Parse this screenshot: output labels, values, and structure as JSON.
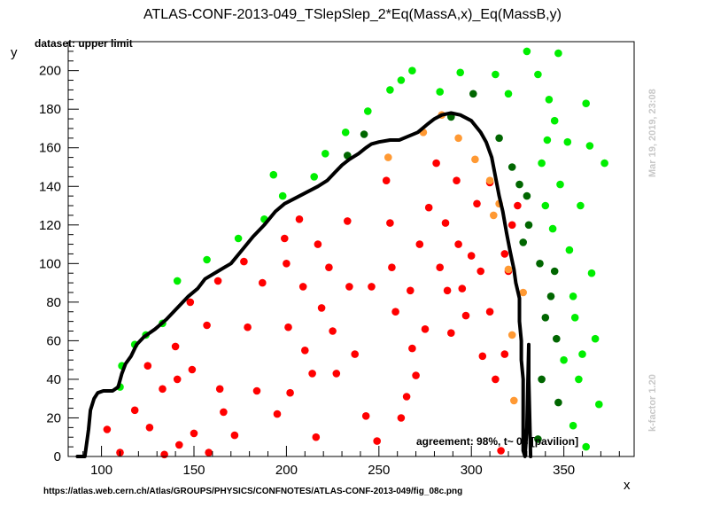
{
  "chart_data": {
    "type": "scatter",
    "title": "ATLAS-CONF-2013-049_TSlepSlep_2*Eq(MassA,x)_Eq(MassB,y)",
    "subtitle": "dataset: upper limit",
    "xlabel": "x",
    "ylabel": "y",
    "xlim": [
      82,
      388
    ],
    "ylim": [
      0,
      215
    ],
    "xticks": [
      100,
      150,
      200,
      250,
      300,
      350
    ],
    "yticks": [
      0,
      20,
      40,
      60,
      80,
      100,
      120,
      140,
      160,
      180,
      200
    ],
    "grid": false,
    "annotation": "agreement: 98%, t~ 0s [pavilion]",
    "watermark_date": "Mar 19, 2019, 23:08",
    "watermark_version": "k-factor 1.20",
    "footer_url": "https://atlas.web.cern.ch/Atlas/GROUPS/PHYSICS/CONFNOTES/ATLAS-CONF-2013-049/fig_08c.png",
    "colors": {
      "red": "#ff0000",
      "orange": "#ff9933",
      "lightgreen": "#00ee00",
      "darkgreen": "#006600",
      "curve": "#000000"
    },
    "series": [
      {
        "name": "red",
        "points": [
          [
            103,
            14
          ],
          [
            110,
            2
          ],
          [
            118,
            24
          ],
          [
            125,
            47
          ],
          [
            126,
            15
          ],
          [
            133,
            35
          ],
          [
            134,
            1
          ],
          [
            140,
            57
          ],
          [
            141,
            40
          ],
          [
            142,
            6
          ],
          [
            148,
            80
          ],
          [
            149,
            45
          ],
          [
            150,
            12
          ],
          [
            157,
            68
          ],
          [
            158,
            2
          ],
          [
            163,
            91
          ],
          [
            164,
            35
          ],
          [
            166,
            23
          ],
          [
            172,
            11
          ],
          [
            177,
            101
          ],
          [
            179,
            67
          ],
          [
            184,
            34
          ],
          [
            187,
            90
          ],
          [
            195,
            22
          ],
          [
            199,
            113
          ],
          [
            200,
            100
          ],
          [
            201,
            67
          ],
          [
            202,
            33
          ],
          [
            207,
            123
          ],
          [
            209,
            88
          ],
          [
            210,
            55
          ],
          [
            214,
            43
          ],
          [
            216,
            10
          ],
          [
            217,
            110
          ],
          [
            219,
            77
          ],
          [
            223,
            98
          ],
          [
            225,
            65
          ],
          [
            227,
            43
          ],
          [
            233,
            122
          ],
          [
            234,
            88
          ],
          [
            237,
            53
          ],
          [
            243,
            21
          ],
          [
            246,
            88
          ],
          [
            249,
            8
          ],
          [
            254,
            143
          ],
          [
            256,
            121
          ],
          [
            257,
            98
          ],
          [
            259,
            75
          ],
          [
            262,
            20
          ],
          [
            265,
            31
          ],
          [
            267,
            86
          ],
          [
            268,
            56
          ],
          [
            270,
            42
          ],
          [
            272,
            110
          ],
          [
            275,
            66
          ],
          [
            277,
            129
          ],
          [
            281,
            152
          ],
          [
            283,
            98
          ],
          [
            286,
            121
          ],
          [
            287,
            86
          ],
          [
            289,
            64
          ],
          [
            292,
            143
          ],
          [
            293,
            110
          ],
          [
            295,
            87
          ],
          [
            297,
            73
          ],
          [
            300,
            104
          ],
          [
            303,
            131
          ],
          [
            305,
            96
          ],
          [
            306,
            52
          ],
          [
            310,
            75
          ],
          [
            313,
            40
          ],
          [
            316,
            3
          ],
          [
            318,
            53
          ],
          [
            320,
            96
          ],
          [
            318,
            105
          ],
          [
            322,
            120
          ],
          [
            325,
            130
          ],
          [
            310,
            142
          ]
        ]
      },
      {
        "name": "orange",
        "points": [
          [
            255,
            155
          ],
          [
            274,
            168
          ],
          [
            284,
            177
          ],
          [
            293,
            165
          ],
          [
            302,
            154
          ],
          [
            310,
            143
          ],
          [
            312,
            125
          ],
          [
            315,
            131
          ],
          [
            320,
            97
          ],
          [
            322,
            63
          ],
          [
            323,
            29
          ],
          [
            328,
            85
          ]
        ]
      },
      {
        "name": "lightgreen",
        "points": [
          [
            110,
            36
          ],
          [
            111,
            47
          ],
          [
            118,
            58
          ],
          [
            124,
            63
          ],
          [
            133,
            69
          ],
          [
            141,
            91
          ],
          [
            157,
            102
          ],
          [
            174,
            113
          ],
          [
            188,
            123
          ],
          [
            193,
            146
          ],
          [
            198,
            135
          ],
          [
            215,
            145
          ],
          [
            221,
            157
          ],
          [
            232,
            168
          ],
          [
            244,
            179
          ],
          [
            256,
            190
          ],
          [
            262,
            195
          ],
          [
            268,
            200
          ],
          [
            283,
            189
          ],
          [
            294,
            199
          ],
          [
            313,
            198
          ],
          [
            320,
            188
          ],
          [
            330,
            210
          ],
          [
            336,
            198
          ],
          [
            338,
            152
          ],
          [
            340,
            130
          ],
          [
            341,
            164
          ],
          [
            342,
            185
          ],
          [
            344,
            118
          ],
          [
            345,
            174
          ],
          [
            347,
            209
          ],
          [
            348,
            141
          ],
          [
            350,
            50
          ],
          [
            352,
            163
          ],
          [
            353,
            107
          ],
          [
            355,
            83
          ],
          [
            356,
            72
          ],
          [
            358,
            40
          ],
          [
            359,
            130
          ],
          [
            362,
            183
          ],
          [
            364,
            161
          ],
          [
            365,
            95
          ],
          [
            367,
            61
          ],
          [
            369,
            27
          ],
          [
            372,
            152
          ],
          [
            360,
            53
          ],
          [
            355,
            16
          ],
          [
            362,
            5
          ]
        ]
      },
      {
        "name": "darkgreen",
        "points": [
          [
            233,
            156
          ],
          [
            242,
            167
          ],
          [
            289,
            176
          ],
          [
            301,
            188
          ],
          [
            315,
            165
          ],
          [
            322,
            150
          ],
          [
            326,
            141
          ],
          [
            331,
            120
          ],
          [
            337,
            100
          ],
          [
            340,
            72
          ],
          [
            343,
            83
          ],
          [
            346,
            61
          ],
          [
            347,
            28
          ],
          [
            338,
            40
          ],
          [
            336,
            9
          ],
          [
            330,
            135
          ],
          [
            328,
            111
          ],
          [
            345,
            96
          ]
        ]
      }
    ],
    "curve": [
      [
        87,
        0
      ],
      [
        91,
        0
      ],
      [
        93,
        14
      ],
      [
        94,
        24
      ],
      [
        96,
        30
      ],
      [
        98,
        33
      ],
      [
        101,
        34
      ],
      [
        106,
        34
      ],
      [
        109,
        36
      ],
      [
        111,
        43
      ],
      [
        113,
        48
      ],
      [
        116,
        52
      ],
      [
        119,
        58
      ],
      [
        123,
        62
      ],
      [
        129,
        66
      ],
      [
        135,
        71
      ],
      [
        141,
        77
      ],
      [
        147,
        83
      ],
      [
        152,
        87
      ],
      [
        156,
        92
      ],
      [
        163,
        96
      ],
      [
        170,
        100
      ],
      [
        176,
        107
      ],
      [
        182,
        114
      ],
      [
        188,
        120
      ],
      [
        194,
        127
      ],
      [
        199,
        131
      ],
      [
        205,
        134
      ],
      [
        211,
        137
      ],
      [
        217,
        140
      ],
      [
        222,
        143
      ],
      [
        226,
        147
      ],
      [
        230,
        151
      ],
      [
        234,
        154
      ],
      [
        239,
        157
      ],
      [
        243,
        160
      ],
      [
        246,
        162
      ],
      [
        250,
        163
      ],
      [
        256,
        164
      ],
      [
        261,
        164
      ],
      [
        266,
        166
      ],
      [
        271,
        168
      ],
      [
        276,
        172
      ],
      [
        280,
        175
      ],
      [
        284,
        177
      ],
      [
        289,
        178
      ],
      [
        294,
        177
      ],
      [
        300,
        174
      ],
      [
        305,
        168
      ],
      [
        308,
        163
      ],
      [
        311,
        155
      ],
      [
        313,
        145
      ],
      [
        315,
        135
      ],
      [
        317,
        127
      ],
      [
        319,
        116
      ],
      [
        321,
        106
      ],
      [
        323,
        97
      ],
      [
        324,
        90
      ],
      [
        326,
        82
      ],
      [
        326,
        70
      ],
      [
        327,
        60
      ],
      [
        327,
        50
      ],
      [
        328,
        40
      ],
      [
        328,
        20
      ],
      [
        328,
        3
      ],
      [
        329,
        0
      ],
      [
        330,
        15
      ],
      [
        331,
        58
      ],
      [
        331,
        40
      ],
      [
        332,
        0
      ]
    ]
  }
}
